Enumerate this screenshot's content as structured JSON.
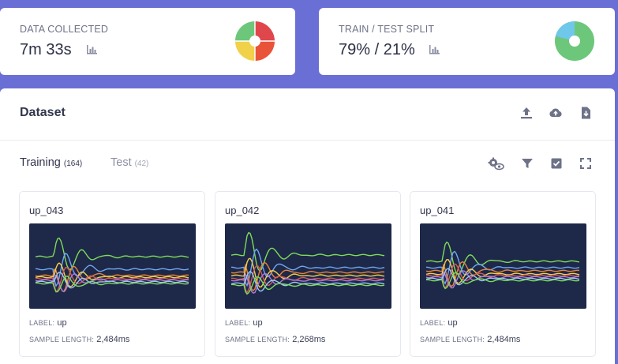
{
  "stats": {
    "data_collected": {
      "title": "DATA COLLECTED",
      "value": "7m 33s",
      "chart_icon": "bar-chart-icon",
      "pie_colors": [
        "#e0474c",
        "#e8533a",
        "#f2d14a",
        "#6cc77a"
      ]
    },
    "train_test": {
      "title": "TRAIN / TEST SPLIT",
      "value": "79% / 21%",
      "chart_icon": "bar-chart-icon",
      "split": [
        0.79,
        0.21
      ],
      "pie_colors": [
        "#6cc77a",
        "#6fc7ea"
      ]
    }
  },
  "dataset": {
    "title": "Dataset",
    "header_icons": [
      "upload-icon",
      "cloud-upload-icon",
      "export-file-icon"
    ],
    "tabs": [
      {
        "label": "Training",
        "count": "(164)"
      },
      {
        "label": "Test",
        "count": "(42)"
      }
    ],
    "tool_icons": [
      "settings-preview-icon",
      "filter-icon",
      "select-all-icon",
      "fullscreen-icon"
    ],
    "label_caption": "LABEL:",
    "length_caption": "SAMPLE LENGTH:",
    "samples": [
      {
        "name": "up_043",
        "label": "up",
        "length": "2,484ms"
      },
      {
        "name": "up_042",
        "label": "up",
        "length": "2,268ms"
      },
      {
        "name": "up_041",
        "label": "up",
        "length": "2,484ms"
      }
    ]
  },
  "colors": {
    "accent_background": "#6a6fd6",
    "plot_background": "#1e2848",
    "signal_colors": [
      "#7ddc5a",
      "#6fa8f0",
      "#e8833a",
      "#f2d14a",
      "#d05a5a",
      "#b07ad8",
      "#9ac8f2"
    ]
  }
}
